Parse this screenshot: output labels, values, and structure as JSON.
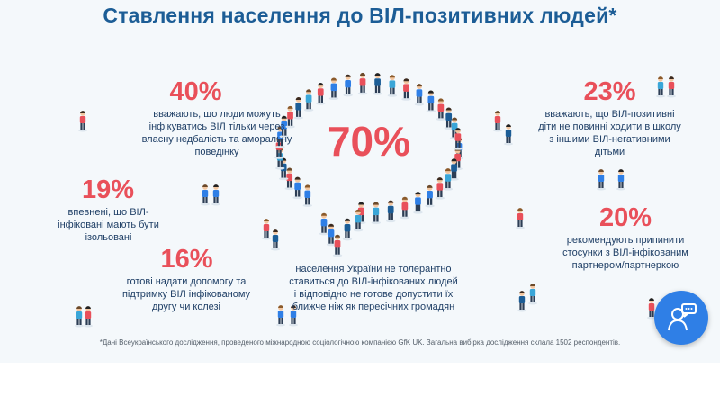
{
  "title": "Ставлення населення до ВІЛ-позитивних людей*",
  "stats": [
    {
      "value": "40%",
      "text": "вважають, що люди можуть інфікуватись ВІЛ тільки через власну недбалість та аморальну поведінку"
    },
    {
      "value": "19%",
      "text": "впевнені, що ВІЛ-інфіковані мають бути ізольовані"
    },
    {
      "value": "16%",
      "text": "готові надати допомогу та підтримку ВІЛ інфікованому другу чи колезі"
    },
    {
      "value": "23%",
      "text": "вважають, що ВІЛ-позитивні діти не повинні ходити в школу з іншими ВІЛ-негативними дітьми"
    },
    {
      "value": "20%",
      "text": "рекомендують припинити стосунки з ВІЛ-інфікованим партнером/партнеркою"
    }
  ],
  "central": {
    "value": "70%",
    "text": "населення України не толерантно ставиться до ВІЛ-інфікованих людей і відповідно не готове допустити їх ближче ніж як пересічних громадян"
  },
  "footnote": "*Дані Всеукраїнського дослідження, проведеного міжнародною соціологічною компанією GfK UK. Загальна вибірка дослідження склала 1502 респондентів.",
  "chat_button": {
    "icon": "support-chat-icon"
  },
  "colors": {
    "title": "#1c5d96",
    "accent": "#e9505a",
    "text": "#1f3f66",
    "chat": "#2f7fe6"
  }
}
